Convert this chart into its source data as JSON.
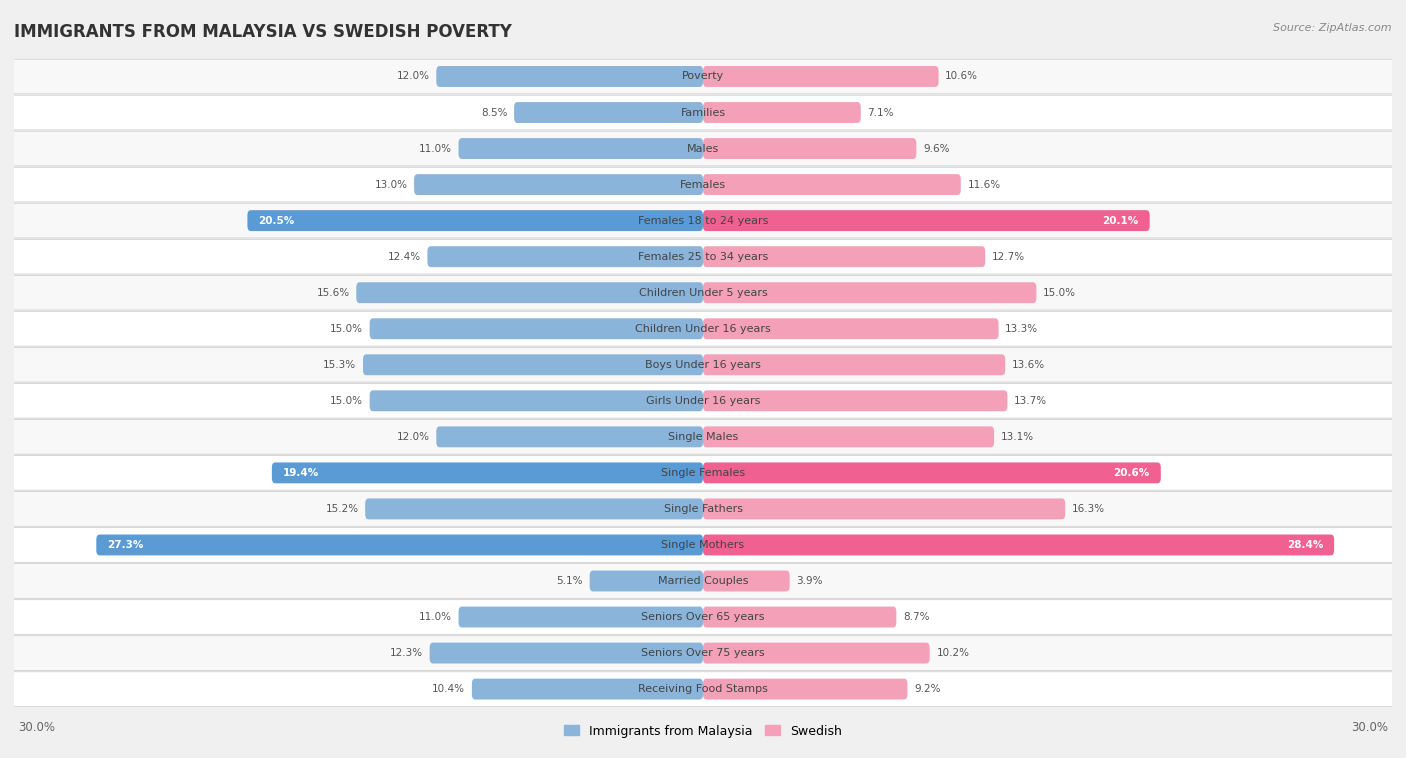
{
  "title": "IMMIGRANTS FROM MALAYSIA VS SWEDISH POVERTY",
  "source": "Source: ZipAtlas.com",
  "categories": [
    "Poverty",
    "Families",
    "Males",
    "Females",
    "Females 18 to 24 years",
    "Females 25 to 34 years",
    "Children Under 5 years",
    "Children Under 16 years",
    "Boys Under 16 years",
    "Girls Under 16 years",
    "Single Males",
    "Single Females",
    "Single Fathers",
    "Single Mothers",
    "Married Couples",
    "Seniors Over 65 years",
    "Seniors Over 75 years",
    "Receiving Food Stamps"
  ],
  "malaysia_values": [
    12.0,
    8.5,
    11.0,
    13.0,
    20.5,
    12.4,
    15.6,
    15.0,
    15.3,
    15.0,
    12.0,
    19.4,
    15.2,
    27.3,
    5.1,
    11.0,
    12.3,
    10.4
  ],
  "swedish_values": [
    10.6,
    7.1,
    9.6,
    11.6,
    20.1,
    12.7,
    15.0,
    13.3,
    13.6,
    13.7,
    13.1,
    20.6,
    16.3,
    28.4,
    3.9,
    8.7,
    10.2,
    9.2
  ],
  "malaysia_color": "#8ab4d9",
  "swedish_color": "#f4a0b8",
  "malaysia_highlight_color": "#5b9bd5",
  "swedish_highlight_color": "#f06090",
  "highlight_indices": [
    4,
    11,
    13
  ],
  "xlim": 30.0,
  "bar_height": 0.58,
  "background_color": "#f0f0f0",
  "row_color_even": "#f8f8f8",
  "row_color_odd": "#ffffff",
  "title_fontsize": 12,
  "label_fontsize": 8.0,
  "value_fontsize": 7.5,
  "legend_fontsize": 9
}
